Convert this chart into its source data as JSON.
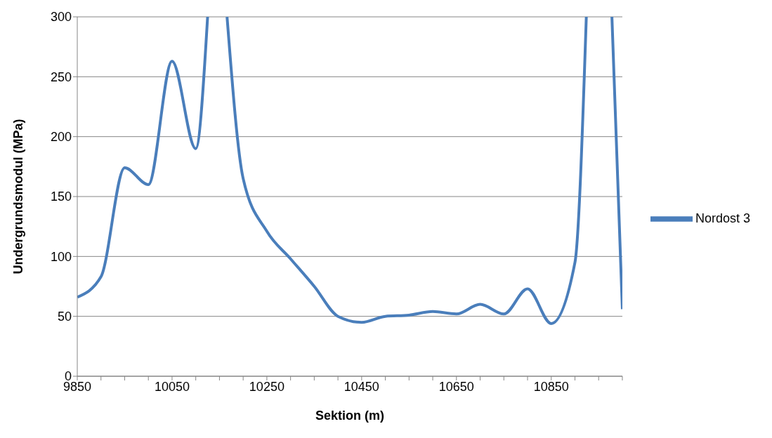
{
  "chart_data": {
    "type": "line",
    "xlabel": "Sektion (m)",
    "ylabel": "Undergrundsmodul (MPa)",
    "series": [
      {
        "name": "Nordost 3",
        "color": "#4a7ebb",
        "x": [
          9850,
          9900,
          9950,
          10000,
          10050,
          10100,
          10125,
          10150,
          10166,
          10200,
          10250,
          10300,
          10350,
          10400,
          10450,
          10500,
          10550,
          10600,
          10650,
          10700,
          10750,
          10800,
          10850,
          10900,
          10924,
          10950,
          10978,
          11000
        ],
        "values": [
          66,
          83,
          174,
          160,
          263,
          190,
          300,
          null,
          300,
          165,
          121,
          98,
          75,
          50,
          45,
          50,
          51,
          54,
          52,
          60,
          52,
          73,
          44,
          95,
          300,
          null,
          300,
          56
        ]
      }
    ],
    "xlim": [
      9850,
      11000
    ],
    "xticks": [
      9850,
      {
        "value": 9900,
        "label": null
      },
      {
        "value": 9950,
        "label": null
      },
      {
        "value": 10000,
        "label": null
      },
      10050,
      {
        "value": 10100,
        "label": null
      },
      {
        "value": 10150,
        "label": null
      },
      {
        "value": 10200,
        "label": null
      },
      10250,
      {
        "value": 10300,
        "label": null
      },
      {
        "value": 10350,
        "label": null
      },
      {
        "value": 10400,
        "label": null
      },
      10450,
      {
        "value": 10500,
        "label": null
      },
      {
        "value": 10550,
        "label": null
      },
      {
        "value": 10600,
        "label": null
      },
      10650,
      {
        "value": 10700,
        "label": null
      },
      {
        "value": 10750,
        "label": null
      },
      {
        "value": 10800,
        "label": null
      },
      10850,
      {
        "value": 10900,
        "label": null
      },
      {
        "value": 10950,
        "label": null
      },
      {
        "value": 11000,
        "label": null
      }
    ],
    "ylim": [
      0,
      300
    ],
    "yticks": [
      0,
      50,
      100,
      150,
      200,
      250,
      300
    ],
    "grid": "y",
    "legend": "right",
    "marker": "none",
    "line_style": "solid"
  }
}
